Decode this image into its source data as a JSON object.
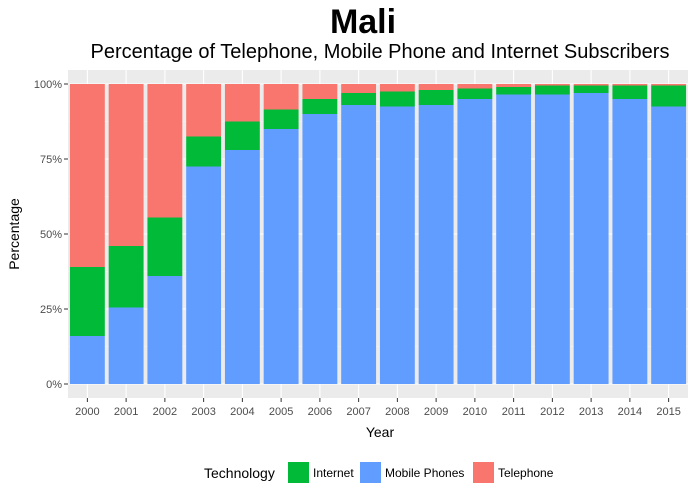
{
  "chart_data": {
    "type": "bar",
    "stacked": true,
    "title": "Mali",
    "subtitle": "Percentage of Telephone, Mobile Phone and Internet Subscribers",
    "xlabel": "Year",
    "ylabel": "Percentage",
    "categories": [
      "2000",
      "2001",
      "2002",
      "2003",
      "2004",
      "2005",
      "2006",
      "2007",
      "2008",
      "2009",
      "2010",
      "2011",
      "2012",
      "2013",
      "2014",
      "2015"
    ],
    "ylim": [
      0,
      100
    ],
    "yticks": [
      0,
      25,
      50,
      75,
      100
    ],
    "ytick_labels": [
      "0%",
      "25%",
      "50%",
      "75%",
      "100%"
    ],
    "grid": true,
    "legend_position": "bottom",
    "legend_title": "Technology",
    "series": [
      {
        "name": "Mobile Phones",
        "color": "#619cff",
        "values": [
          16,
          25.5,
          36,
          72.5,
          78,
          85,
          90,
          93,
          92.5,
          93,
          95,
          96.5,
          96.5,
          97,
          95,
          92.5
        ]
      },
      {
        "name": "Internet",
        "color": "#00ba38",
        "values": [
          23,
          20.5,
          19.5,
          10,
          9.5,
          6.5,
          5,
          4,
          5,
          5,
          3.5,
          2.5,
          3,
          2.5,
          4.5,
          7
        ]
      },
      {
        "name": "Telephone",
        "color": "#f8766d",
        "values": [
          61,
          54,
          44.5,
          17.5,
          12.5,
          8.5,
          5,
          3,
          2.5,
          2,
          1.5,
          1,
          0.5,
          0.5,
          0.5,
          0.5
        ]
      }
    ],
    "legend_order": [
      "Internet",
      "Mobile Phones",
      "Telephone"
    ]
  },
  "colors": {
    "panel_background": "#ebebeb",
    "grid_major": "#ffffff",
    "grid_minor": "#f5f5f5"
  }
}
